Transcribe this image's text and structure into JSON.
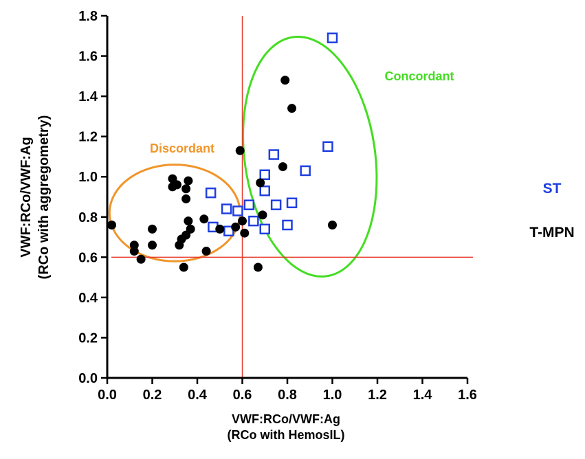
{
  "chart_data": {
    "type": "scatter",
    "title": "",
    "xlabel_lines": [
      "VWF:RCo/VWF:Ag",
      "(RCo with HemosIL)"
    ],
    "ylabel_lines": [
      "VWF:RCo/VWF:Ag",
      "(RCo with aggregometry)"
    ],
    "xlim": [
      0,
      1.6
    ],
    "ylim": [
      0,
      1.8
    ],
    "x_ticks": [
      "0.0",
      "0.2",
      "0.4",
      "0.6",
      "0.8",
      "1.0",
      "1.2",
      "1.4",
      "1.6"
    ],
    "y_ticks": [
      "0.0",
      "0.2",
      "0.4",
      "0.6",
      "0.8",
      "1.0",
      "1.2",
      "1.4",
      "1.6",
      "1.8"
    ],
    "grid": false,
    "legend_placement": "right",
    "reference_lines": {
      "vertical_x": 0.6,
      "horizontal_y": 0.6,
      "color": "#e8392a"
    },
    "series": [
      {
        "name": "ST",
        "marker": "open-square",
        "color": "#1f3fe0",
        "points": [
          [
            1.0,
            1.69
          ],
          [
            0.98,
            1.15
          ],
          [
            0.74,
            1.11
          ],
          [
            0.88,
            1.03
          ],
          [
            0.7,
            1.01
          ],
          [
            0.7,
            0.93
          ],
          [
            0.46,
            0.92
          ],
          [
            0.75,
            0.86
          ],
          [
            0.82,
            0.87
          ],
          [
            0.63,
            0.86
          ],
          [
            0.53,
            0.84
          ],
          [
            0.58,
            0.83
          ],
          [
            0.8,
            0.76
          ],
          [
            0.7,
            0.74
          ],
          [
            0.65,
            0.78
          ],
          [
            0.47,
            0.75
          ],
          [
            0.54,
            0.73
          ]
        ]
      },
      {
        "name": "T-MPN",
        "marker": "filled-circle",
        "color": "#000000",
        "points": [
          [
            0.79,
            1.48
          ],
          [
            0.82,
            1.34
          ],
          [
            0.59,
            1.13
          ],
          [
            0.78,
            1.05
          ],
          [
            0.68,
            0.97
          ],
          [
            0.29,
            0.99
          ],
          [
            0.36,
            0.98
          ],
          [
            0.29,
            0.95
          ],
          [
            0.31,
            0.96
          ],
          [
            0.35,
            0.94
          ],
          [
            0.35,
            0.89
          ],
          [
            0.69,
            0.81
          ],
          [
            1.0,
            0.76
          ],
          [
            0.02,
            0.76
          ],
          [
            0.2,
            0.74
          ],
          [
            0.36,
            0.78
          ],
          [
            0.43,
            0.79
          ],
          [
            0.37,
            0.74
          ],
          [
            0.5,
            0.74
          ],
          [
            0.57,
            0.75
          ],
          [
            0.6,
            0.78
          ],
          [
            0.61,
            0.72
          ],
          [
            0.35,
            0.71
          ],
          [
            0.33,
            0.69
          ],
          [
            0.12,
            0.66
          ],
          [
            0.2,
            0.66
          ],
          [
            0.12,
            0.63
          ],
          [
            0.32,
            0.66
          ],
          [
            0.44,
            0.63
          ],
          [
            0.15,
            0.59
          ],
          [
            0.34,
            0.55
          ],
          [
            0.67,
            0.55
          ]
        ]
      }
    ],
    "annotations": [
      {
        "text": "Concordant",
        "color": "#44dd22"
      },
      {
        "text": "Discordant",
        "color": "#f0952a"
      }
    ],
    "regions": [
      {
        "label": "Concordant",
        "color": "#44dd22",
        "center": [
          0.9,
          1.1
        ],
        "radius": [
          0.29,
          0.6
        ]
      },
      {
        "label": "Discordant",
        "color": "#f0952a",
        "center": [
          0.3,
          0.82
        ],
        "radius": [
          0.29,
          0.24
        ]
      }
    ]
  }
}
